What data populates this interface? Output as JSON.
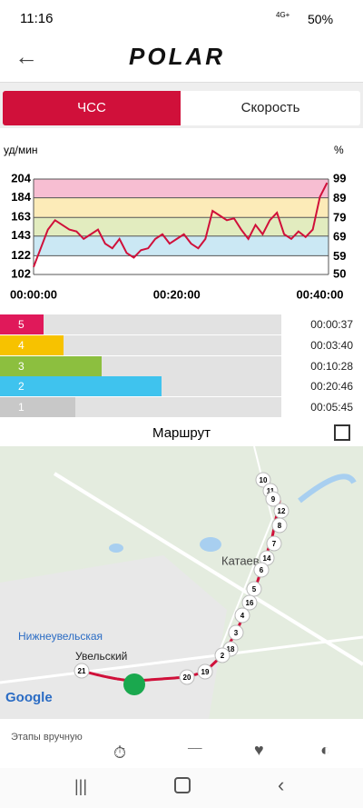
{
  "status": {
    "time": "11:16",
    "network": "4G+",
    "battery": "50%"
  },
  "header": {
    "logo": "POLAR"
  },
  "tabs": [
    "ЧСС",
    "Скорость"
  ],
  "chart_data": {
    "type": "line",
    "y_label": "уд/мин",
    "y2_label": "%",
    "x": [
      0,
      1,
      2,
      3,
      4,
      5,
      6,
      7,
      8,
      9,
      10,
      11,
      12,
      13,
      14,
      15,
      16,
      17,
      18,
      19,
      20,
      21,
      22,
      23,
      24,
      25,
      26,
      27,
      28,
      29,
      30,
      31,
      32,
      33,
      34,
      35,
      36,
      37,
      38,
      39,
      40,
      41
    ],
    "series": [
      {
        "name": "ЧСС",
        "color": "#d0103a",
        "values": [
          110,
          130,
          150,
          160,
          155,
          150,
          148,
          140,
          145,
          150,
          135,
          130,
          140,
          125,
          120,
          128,
          130,
          140,
          145,
          135,
          140,
          145,
          135,
          130,
          140,
          170,
          165,
          160,
          162,
          150,
          140,
          155,
          145,
          160,
          168,
          145,
          140,
          148,
          142,
          150,
          185,
          200
        ]
      }
    ],
    "xlim": [
      0,
      41.2
    ],
    "xticks": [
      {
        "value": 0,
        "label": "00:00:00"
      },
      {
        "value": 20,
        "label": "00:20:00"
      },
      {
        "value": 40,
        "label": "00:40:00"
      }
    ],
    "ylim": [
      102,
      204
    ],
    "yticks": [
      102,
      122,
      143,
      163,
      184,
      204
    ],
    "y2lim": [
      50,
      99
    ],
    "y2ticks": [
      50,
      59,
      69,
      79,
      89,
      99
    ],
    "band_colors": [
      "#ffffff",
      "#cbe8f4",
      "#e2ecbf",
      "#fcebb8",
      "#f7bed2"
    ]
  },
  "zones": [
    {
      "label": "5",
      "time": "00:00:37",
      "color": "#e0195a"
    },
    {
      "label": "4",
      "time": "00:03:40",
      "color": "#f7c200"
    },
    {
      "label": "3",
      "time": "00:10:28",
      "color": "#8cbf3f"
    },
    {
      "label": "2",
      "time": "00:20:46",
      "color": "#3fc3ee"
    },
    {
      "label": "1",
      "time": "00:05:45",
      "color": "#c8c8c8"
    }
  ],
  "route_title": "Маршрут",
  "map": {
    "places": [
      "Катаев",
      "Нижнеувельская",
      "Увельский",
      "Google"
    ],
    "markers": [
      "10",
      "11",
      "9",
      "12",
      "8",
      "7",
      "14",
      "6",
      "5",
      "16",
      "4",
      "3",
      "18",
      "2",
      "19",
      "20",
      "21"
    ]
  },
  "bottom": {
    "label": "Этапы вручную"
  }
}
